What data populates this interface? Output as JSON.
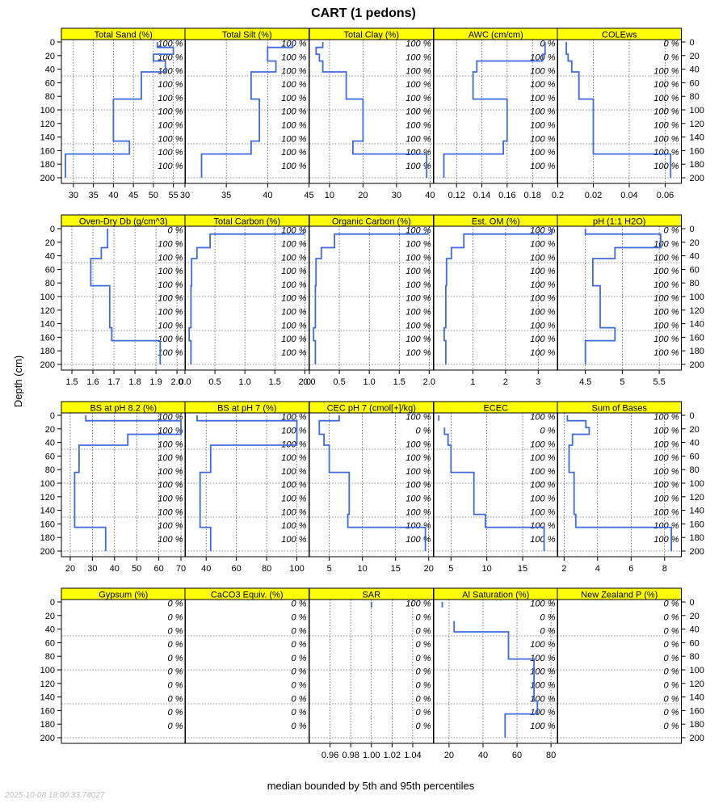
{
  "title": "CART (1 pedons)",
  "ylabel": "Depth (cm)",
  "xlabel": "median bounded by 5th and 95th percentiles",
  "timestamp": "2025-10-08 18:00:33.74027",
  "colors": {
    "strip": "#ffff00",
    "line": "#4169e1"
  },
  "chart_data": {
    "type": "line",
    "y_axis": {
      "label": "Depth (cm)",
      "range": [
        0,
        200
      ],
      "reversed": true,
      "ticks": [
        0,
        20,
        40,
        60,
        80,
        100,
        120,
        140,
        160,
        180,
        200
      ]
    },
    "pct_depths": [
      2,
      22,
      42,
      62,
      82,
      102,
      122,
      142,
      162,
      182
    ],
    "panels": [
      {
        "name": "Total Sand (%)",
        "xlim": [
          27,
          58
        ],
        "ticks": [
          30,
          35,
          40,
          45,
          50,
          55
        ],
        "depth": [
          0,
          8,
          8,
          18,
          18,
          28,
          28,
          44,
          44,
          84,
          84,
          146,
          146,
          165,
          165,
          200
        ],
        "values": [
          51,
          51,
          55,
          55,
          50,
          50,
          53,
          53,
          47,
          47,
          40,
          40,
          44,
          44,
          28,
          28
        ],
        "pct": [
          "100 %",
          "100 %",
          "100 %",
          "100 %",
          "100 %",
          "100 %",
          "100 %",
          "100 %",
          "100 %",
          "100 %"
        ]
      },
      {
        "name": "Total Silt (%)",
        "xlim": [
          30,
          45
        ],
        "ticks": [
          30,
          35,
          40,
          45
        ],
        "depth": [
          0,
          8,
          8,
          18,
          18,
          28,
          28,
          44,
          44,
          84,
          84,
          146,
          146,
          165,
          165,
          200
        ],
        "values": [
          43,
          43,
          40,
          40,
          40,
          40,
          41,
          41,
          38,
          38,
          39,
          39,
          38,
          38,
          32,
          32
        ],
        "pct": [
          "100 %",
          "100 %",
          "100 %",
          "100 %",
          "100 %",
          "100 %",
          "100 %",
          "100 %",
          "100 %",
          "100 %"
        ]
      },
      {
        "name": "Total Clay (%)",
        "xlim": [
          4,
          41
        ],
        "ticks": [
          10,
          20,
          30,
          40
        ],
        "depth": [
          0,
          8,
          8,
          18,
          18,
          28,
          28,
          44,
          44,
          84,
          84,
          146,
          146,
          165,
          165,
          200
        ],
        "values": [
          8,
          8,
          6,
          6,
          7,
          7,
          8,
          8,
          15,
          15,
          20,
          20,
          17,
          17,
          39,
          39
        ],
        "pct": [
          "100 %",
          "100 %",
          "100 %",
          "100 %",
          "100 %",
          "100 %",
          "100 %",
          "100 %",
          "100 %",
          "100 %"
        ]
      },
      {
        "name": "AWC (cm/cm)",
        "xlim": [
          0.102,
          0.2
        ],
        "ticks": [
          0.12,
          0.14,
          0.16,
          0.18,
          0.2
        ],
        "depth": [
          0,
          8,
          8,
          18,
          18,
          28,
          28,
          44,
          44,
          84,
          84,
          146,
          146,
          165,
          165,
          200
        ],
        "values": [
          0.19,
          0.19,
          0.19,
          0.19,
          0.188,
          0.188,
          0.136,
          0.136,
          0.133,
          0.133,
          0.16,
          0.16,
          0.157,
          0.157,
          0.11,
          0.11
        ],
        "pct": [
          "0 %",
          "100 %",
          "100 %",
          "100 %",
          "100 %",
          "100 %",
          "100 %",
          "100 %",
          "100 %",
          "100 %"
        ]
      },
      {
        "name": "COLEws",
        "xlim": [
          0.0,
          0.069
        ],
        "ticks": [
          0.02,
          0.04,
          0.06
        ],
        "depth": [
          0,
          8,
          8,
          18,
          18,
          28,
          28,
          44,
          44,
          84,
          84,
          146,
          146,
          165,
          165,
          200
        ],
        "values": [
          0.005,
          0.005,
          0.005,
          0.005,
          0.006,
          0.006,
          0.008,
          0.008,
          0.012,
          0.012,
          0.02,
          0.02,
          0.02,
          0.02,
          0.063,
          0.063
        ],
        "pct": [
          "0 %",
          "0 %",
          "100 %",
          "100 %",
          "100 %",
          "100 %",
          "100 %",
          "100 %",
          "100 %",
          "100 %"
        ]
      },
      {
        "name": "Oven-Dry Db (g/cm^3)",
        "xlim": [
          1.45,
          2.04
        ],
        "ticks": [
          1.5,
          1.6,
          1.7,
          1.8,
          1.9,
          2.0
        ],
        "tick_labels": [
          "1.5",
          "1.6",
          "1.7",
          "1.8",
          "1.9",
          "2.0"
        ],
        "depth": [
          0,
          8,
          8,
          18,
          18,
          28,
          28,
          44,
          44,
          84,
          84,
          146,
          146,
          165,
          165,
          200
        ],
        "values": [
          1.67,
          1.67,
          1.67,
          1.67,
          1.67,
          1.67,
          1.64,
          1.64,
          1.59,
          1.59,
          1.68,
          1.68,
          1.69,
          1.69,
          1.92,
          1.92
        ],
        "pct": [
          "0 %",
          "100 %",
          "100 %",
          "100 %",
          "100 %",
          "100 %",
          "100 %",
          "100 %",
          "100 %",
          "100 %"
        ]
      },
      {
        "name": "Total Carbon (%)",
        "xlim": [
          0.0,
          2.07
        ],
        "ticks": [
          0.0,
          0.5,
          1.0,
          1.5,
          2.0
        ],
        "tick_labels": [
          "0.0",
          "0.5",
          "1.0",
          "1.5",
          "2.0"
        ],
        "depth": [
          0,
          8,
          8,
          18,
          18,
          28,
          28,
          44,
          44,
          84,
          84,
          146,
          146,
          165,
          165,
          200
        ],
        "values": [
          1.98,
          1.98,
          0.42,
          0.42,
          0.42,
          0.42,
          0.2,
          0.2,
          0.11,
          0.11,
          0.1,
          0.1,
          0.07,
          0.07,
          0.1,
          0.1
        ],
        "pct": [
          "100 %",
          "100 %",
          "100 %",
          "100 %",
          "100 %",
          "100 %",
          "100 %",
          "100 %",
          "100 %",
          "100 %"
        ]
      },
      {
        "name": "Organic Carbon (%)",
        "xlim": [
          0.0,
          2.07
        ],
        "ticks": [
          0.0,
          0.5,
          1.0,
          1.5,
          2.0
        ],
        "tick_labels": [
          "0.0",
          "0.5",
          "1.0",
          "1.5",
          "2.0"
        ],
        "depth": [
          0,
          8,
          8,
          18,
          18,
          28,
          28,
          44,
          44,
          84,
          84,
          146,
          146,
          165,
          165,
          200
        ],
        "values": [
          1.98,
          1.98,
          0.42,
          0.42,
          0.42,
          0.42,
          0.2,
          0.2,
          0.11,
          0.11,
          0.1,
          0.1,
          0.07,
          0.07,
          0.1,
          0.1
        ],
        "pct": [
          "100 %",
          "100 %",
          "100 %",
          "100 %",
          "100 %",
          "100 %",
          "100 %",
          "100 %",
          "100 %",
          "100 %"
        ]
      },
      {
        "name": "Est. OM (%)",
        "xlim": [
          -0.2,
          3.6
        ],
        "ticks": [
          1,
          2,
          3
        ],
        "depth": [
          0,
          8,
          8,
          18,
          18,
          28,
          28,
          44,
          44,
          84,
          84,
          146,
          146,
          165,
          165,
          200
        ],
        "values": [
          3.41,
          3.41,
          0.72,
          0.72,
          0.72,
          0.72,
          0.34,
          0.34,
          0.19,
          0.19,
          0.17,
          0.17,
          0.12,
          0.12,
          0.17,
          0.17
        ],
        "pct": [
          "100 %",
          "100 %",
          "100 %",
          "100 %",
          "100 %",
          "100 %",
          "100 %",
          "100 %",
          "100 %",
          "100 %"
        ]
      },
      {
        "name": "pH (1:1 H2O)",
        "xlim": [
          4.12,
          5.8
        ],
        "ticks": [
          4.5,
          5.0,
          5.5
        ],
        "tick_labels": [
          "4.5",
          "5",
          "5.5"
        ],
        "depth": [
          0,
          8,
          8,
          18,
          18,
          28,
          28,
          44,
          44,
          84,
          84,
          146,
          146,
          165,
          165,
          200
        ],
        "values": [
          4.5,
          4.5,
          5.52,
          5.52,
          5.52,
          5.52,
          4.9,
          4.9,
          4.6,
          4.6,
          4.7,
          4.7,
          4.9,
          4.9,
          4.5,
          4.5
        ],
        "pct": [
          "0 %",
          "100 %",
          "100 %",
          "100 %",
          "100 %",
          "100 %",
          "100 %",
          "100 %",
          "100 %",
          "100 %"
        ]
      },
      {
        "name": "BS at pH 8.2 (%)",
        "xlim": [
          16,
          72
        ],
        "ticks": [
          20,
          30,
          40,
          50,
          60,
          70
        ],
        "depth": [
          0,
          8,
          8,
          18,
          18,
          28,
          28,
          44,
          44,
          84,
          84,
          146,
          146,
          165,
          165,
          200
        ],
        "values": [
          27,
          27,
          70,
          70,
          70,
          70,
          46,
          46,
          24,
          24,
          22,
          22,
          22,
          22,
          36,
          36
        ],
        "pct": [
          "100 %",
          "100 %",
          "100 %",
          "100 %",
          "100 %",
          "100 %",
          "100 %",
          "100 %",
          "100 %",
          "100 %"
        ]
      },
      {
        "name": "BS at pH 7 (%)",
        "xlim": [
          26,
          108
        ],
        "ticks": [
          40,
          60,
          80,
          100
        ],
        "depth": [
          0,
          8,
          8,
          18,
          18,
          28,
          28,
          44,
          44,
          84,
          84,
          146,
          146,
          165,
          165,
          200
        ],
        "values": [
          34,
          34,
          100,
          100,
          100,
          100,
          100,
          100,
          43,
          43,
          36,
          36,
          36,
          36,
          43,
          43
        ],
        "pct": [
          "100 %",
          "100 %",
          "100 %",
          "100 %",
          "100 %",
          "100 %",
          "100 %",
          "100 %",
          "100 %",
          "100 %"
        ]
      },
      {
        "name": "CEC pH 7 (cmol[+]/kg)",
        "xlim": [
          2.0,
          20.7
        ],
        "ticks": [
          5,
          10,
          15,
          20
        ],
        "depth": [
          0,
          8,
          8,
          18,
          18,
          28,
          28,
          44,
          44,
          84,
          84,
          146,
          146,
          165,
          165,
          200
        ],
        "values": [
          6.5,
          6.5,
          3.5,
          3.5,
          3.5,
          3.5,
          4.2,
          4.2,
          5.0,
          5.0,
          8.0,
          8.0,
          7.8,
          7.8,
          19.5,
          19.5
        ],
        "pct": [
          "100 %",
          "0 %",
          "100 %",
          "100 %",
          "100 %",
          "100 %",
          "100 %",
          "100 %",
          "100 %",
          "100 %"
        ]
      },
      {
        "name": "ECEC",
        "xlim": [
          2.6,
          19.9
        ],
        "ticks": [
          5,
          10,
          15
        ],
        "depth": [
          0,
          8,
          8,
          18,
          18,
          28,
          28,
          44,
          44,
          84,
          84,
          146,
          146,
          165,
          165,
          200
        ],
        "values": [
          3.3,
          3.3,
          null,
          null,
          4.1,
          4.1,
          4.6,
          4.6,
          5.0,
          5.0,
          8.2,
          8.2,
          9.8,
          9.8,
          18.0,
          18.0
        ],
        "pct": [
          "100 %",
          "0 %",
          "100 %",
          "100 %",
          "100 %",
          "100 %",
          "100 %",
          "100 %",
          "100 %",
          "100 %"
        ]
      },
      {
        "name": "Sum of Bases",
        "xlim": [
          1.6,
          9.0
        ],
        "ticks": [
          2,
          4,
          6,
          8
        ],
        "depth": [
          0,
          8,
          8,
          18,
          18,
          28,
          28,
          44,
          44,
          84,
          84,
          146,
          146,
          165,
          165,
          200
        ],
        "values": [
          2.2,
          2.2,
          3.3,
          3.3,
          3.5,
          3.5,
          2.5,
          2.5,
          2.3,
          2.3,
          2.6,
          2.6,
          2.7,
          2.7,
          8.4,
          8.4
        ],
        "pct": [
          "100 %",
          "100 %",
          "100 %",
          "100 %",
          "100 %",
          "100 %",
          "100 %",
          "100 %",
          "100 %",
          "100 %"
        ]
      },
      {
        "name": "Gypsum (%)",
        "xlim": [
          0,
          1
        ],
        "ticks": [],
        "depth": [],
        "values": [],
        "pct": [
          "0 %",
          "0 %",
          "0 %",
          "0 %",
          "0 %",
          "0 %",
          "0 %",
          "0 %",
          "0 %",
          "0 %"
        ]
      },
      {
        "name": "CaCO3 Equiv. (%)",
        "xlim": [
          0,
          1
        ],
        "ticks": [],
        "depth": [],
        "values": [],
        "pct": [
          "0 %",
          "0 %",
          "0 %",
          "0 %",
          "0 %",
          "0 %",
          "0 %",
          "0 %",
          "0 %",
          "0 %"
        ]
      },
      {
        "name": "SAR",
        "xlim": [
          0.94,
          1.06
        ],
        "ticks": [
          0.96,
          0.98,
          1.0,
          1.02,
          1.04
        ],
        "tick_labels": [
          "0.96",
          "0.98",
          "1.00",
          "1.02",
          "1.04"
        ],
        "depth": [
          0,
          8
        ],
        "values": [
          1.0,
          1.0
        ],
        "pct": [
          "100 %",
          "0 %",
          "0 %",
          "0 %",
          "0 %",
          "0 %",
          "0 %",
          "0 %",
          "0 %",
          "0 %"
        ]
      },
      {
        "name": "Al Saturation (%)",
        "xlim": [
          11,
          84
        ],
        "ticks": [
          20,
          40,
          60,
          80
        ],
        "depth": [
          0,
          8,
          8,
          18,
          18,
          28,
          28,
          44,
          44,
          84,
          84,
          146,
          146,
          165,
          165,
          200
        ],
        "values": [
          16,
          16,
          null,
          null,
          null,
          null,
          23,
          23,
          55,
          55,
          70,
          70,
          72,
          72,
          53,
          53
        ],
        "pct": [
          "100 %",
          "0 %",
          "0 %",
          "100 %",
          "100 %",
          "100 %",
          "100 %",
          "100 %",
          "100 %",
          "100 %"
        ]
      },
      {
        "name": "New Zealand P (%)",
        "xlim": [
          0,
          1
        ],
        "ticks": [],
        "depth": [],
        "values": [],
        "pct": [
          "0 %",
          "0 %",
          "0 %",
          "0 %",
          "0 %",
          "0 %",
          "0 %",
          "0 %",
          "0 %",
          "0 %"
        ]
      }
    ]
  }
}
